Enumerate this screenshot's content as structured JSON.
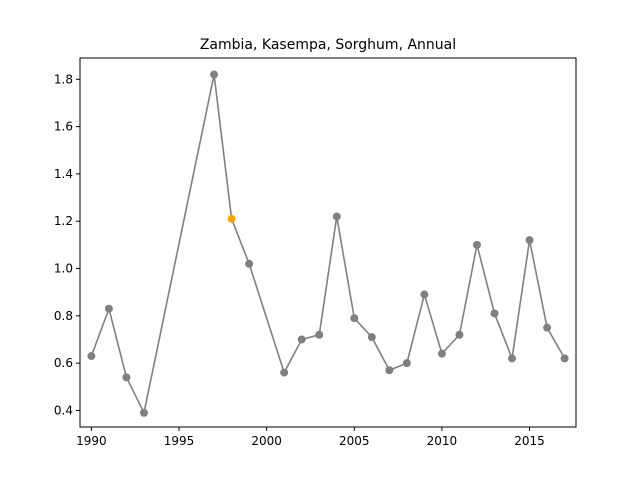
{
  "chart_data": {
    "type": "line",
    "title": "Zambia, Kasempa, Sorghum, Annual",
    "xlabel": "",
    "ylabel": "",
    "xlim": [
      1989.35,
      2017.65
    ],
    "ylim": [
      0.33,
      1.89
    ],
    "xticks": [
      1990,
      1995,
      2000,
      2005,
      2010,
      2015
    ],
    "yticks": [
      0.4,
      0.6,
      0.8,
      1.0,
      1.2,
      1.4,
      1.6,
      1.8
    ],
    "grid": false,
    "legend": "none",
    "series": [
      {
        "color": "#808080",
        "highlight_color": "#ffa500",
        "highlight_index": 5,
        "x": [
          1990,
          1991,
          1992,
          1993,
          1997,
          1998,
          1999,
          2001,
          2002,
          2003,
          2004,
          2005,
          2006,
          2007,
          2008,
          2009,
          2010,
          2011,
          2012,
          2013,
          2014,
          2015,
          2016,
          2017
        ],
        "y": [
          0.63,
          0.83,
          0.54,
          0.39,
          1.82,
          1.21,
          1.02,
          0.56,
          0.7,
          0.72,
          1.22,
          0.79,
          0.71,
          0.57,
          0.6,
          0.89,
          0.64,
          0.72,
          1.1,
          0.81,
          0.62,
          1.12,
          0.75,
          0.62
        ]
      }
    ]
  }
}
